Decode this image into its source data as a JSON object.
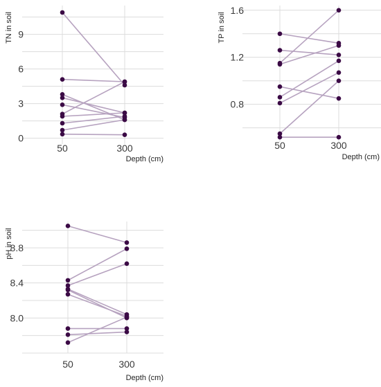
{
  "chart_data": [
    {
      "type": "line",
      "ylabel": "TN in soil",
      "xlabel": "Depth (cm)",
      "categories": [
        "50",
        "300"
      ],
      "yticks": [
        0,
        3,
        6,
        9
      ],
      "ylim": [
        -0.5,
        11.5
      ],
      "grid": true,
      "pairs": [
        [
          10.9,
          4.6
        ],
        [
          5.1,
          4.9
        ],
        [
          3.8,
          1.6
        ],
        [
          3.5,
          2.2
        ],
        [
          2.9,
          1.8
        ],
        [
          2.1,
          4.9
        ],
        [
          1.9,
          2.2
        ],
        [
          1.3,
          1.9
        ],
        [
          0.7,
          1.6
        ],
        [
          0.35,
          0.3
        ]
      ]
    },
    {
      "type": "line",
      "ylabel": "TP in soil",
      "xlabel": "Depth (cm)",
      "categories": [
        "50",
        "300"
      ],
      "yticks": [
        0.8,
        1.2,
        1.6
      ],
      "ylim": [
        0.48,
        1.64
      ],
      "grid": true,
      "pairs": [
        [
          1.4,
          1.32
        ],
        [
          1.26,
          1.22
        ],
        [
          1.15,
          1.6
        ],
        [
          1.14,
          1.3
        ],
        [
          0.95,
          0.85
        ],
        [
          0.86,
          1.17
        ],
        [
          0.81,
          1.07
        ],
        [
          0.55,
          1.0
        ],
        [
          0.52,
          0.52
        ]
      ]
    },
    {
      "type": "line",
      "ylabel": "pH in soil",
      "xlabel": "Depth (cm)",
      "categories": [
        "50",
        "300"
      ],
      "yticks": [
        8.0,
        8.4,
        8.8
      ],
      "ylim": [
        7.6,
        9.1
      ],
      "grid": true,
      "pairs": [
        [
          9.05,
          8.86
        ],
        [
          8.43,
          8.79
        ],
        [
          8.37,
          8.62
        ],
        [
          8.33,
          8.04
        ],
        [
          8.32,
          8.0
        ],
        [
          8.27,
          8.02
        ],
        [
          7.88,
          7.88
        ],
        [
          7.81,
          7.84
        ],
        [
          7.72,
          8.01
        ]
      ]
    }
  ]
}
